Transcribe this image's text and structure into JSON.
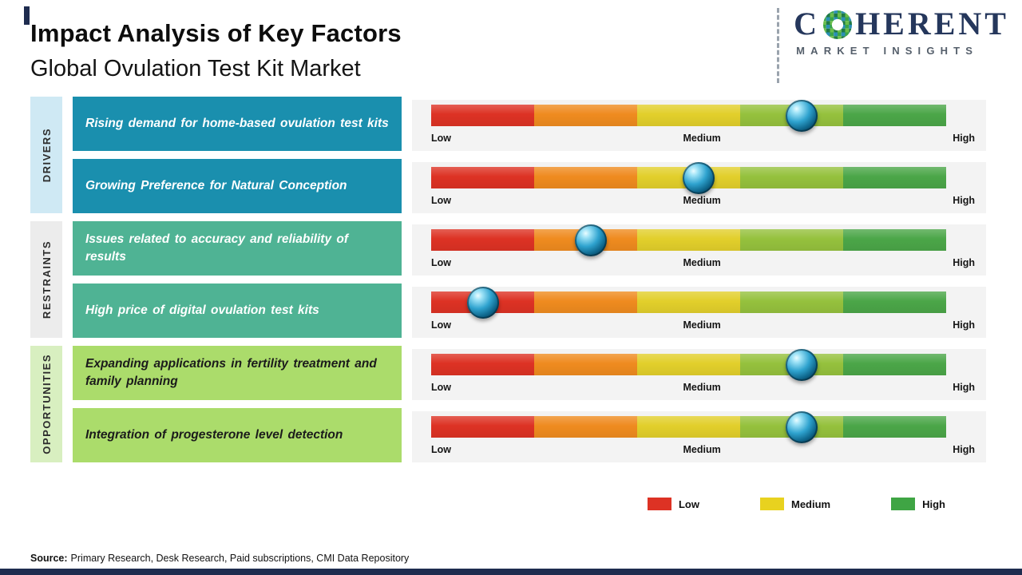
{
  "header": {
    "title": "Impact Analysis of Key Factors",
    "subtitle": "Global Ovulation Test Kit Market"
  },
  "logo": {
    "brand_c": "C",
    "brand_rest": "HERENT",
    "tagline": "MARKET INSIGHTS"
  },
  "categories": [
    {
      "label": "DRIVERS",
      "strip_color": "#cfe9f4",
      "box_color": "#1a8fae",
      "text_color": "#ffffff"
    },
    {
      "label": "RESTRAINTS",
      "strip_color": "#ececec",
      "box_color": "#4fb394",
      "text_color": "#ffffff"
    },
    {
      "label": "OPPORTUNITIES",
      "strip_color": "#d8efc0",
      "box_color": "#abdc6b",
      "text_color": "#1b1b1b"
    }
  ],
  "rows": [
    {
      "category_index": 0,
      "factor": "Rising demand for home-based ovulation test kits",
      "impact_percent": 72
    },
    {
      "category_index": 0,
      "factor": "Growing Preference for Natural Conception",
      "impact_percent": 52
    },
    {
      "category_index": 1,
      "factor": "Issues related to accuracy and reliability of results",
      "impact_percent": 31
    },
    {
      "category_index": 1,
      "factor": "High price of digital ovulation test kits",
      "impact_percent": 10
    },
    {
      "category_index": 2,
      "factor": "Expanding applications in fertility treatment and family planning",
      "impact_percent": 72
    },
    {
      "category_index": 2,
      "factor": "Integration of progesterone level detection",
      "impact_percent": 72
    }
  ],
  "scale": {
    "labels": [
      "Low",
      "Medium",
      "High"
    ],
    "segment_colors": [
      "#dd3224",
      "#ef8b1f",
      "#e2cf2b",
      "#95c13d",
      "#4ba648"
    ]
  },
  "legend": [
    {
      "label": "Low",
      "color": "#dd3224"
    },
    {
      "label": "Medium",
      "color": "#e8d21f"
    },
    {
      "label": "High",
      "color": "#3fa544"
    }
  ],
  "source": {
    "label": "Source:",
    "text": "Primary Research, Desk Research, Paid subscriptions, CMI Data Repository"
  },
  "chart_data": {
    "type": "bar",
    "title": "Impact Analysis of Key Factors",
    "subtitle": "Global Ovulation Test Kit Market",
    "orientation": "horizontal-impact-scale",
    "scale": {
      "labels": [
        "Low",
        "Medium",
        "High"
      ],
      "range_percent": [
        0,
        100
      ]
    },
    "groups": [
      "DRIVERS",
      "RESTRAINTS",
      "OPPORTUNITIES"
    ],
    "rows": [
      {
        "group": "DRIVERS",
        "factor": "Rising demand for home-based ovulation test kits",
        "impact_percent": 72,
        "impact_level": "Medium-High"
      },
      {
        "group": "DRIVERS",
        "factor": "Growing Preference for Natural Conception",
        "impact_percent": 52,
        "impact_level": "Medium"
      },
      {
        "group": "RESTRAINTS",
        "factor": "Issues related to accuracy and reliability of results",
        "impact_percent": 31,
        "impact_level": "Low-Medium"
      },
      {
        "group": "RESTRAINTS",
        "factor": "High price of digital ovulation test kits",
        "impact_percent": 10,
        "impact_level": "Low"
      },
      {
        "group": "OPPORTUNITIES",
        "factor": "Expanding applications in fertility treatment and family planning",
        "impact_percent": 72,
        "impact_level": "Medium-High"
      },
      {
        "group": "OPPORTUNITIES",
        "factor": "Integration of progesterone level detection",
        "impact_percent": 72,
        "impact_level": "Medium-High"
      }
    ],
    "legend": [
      "Low",
      "Medium",
      "High"
    ],
    "source": "Primary Research, Desk Research, Paid subscriptions, CMI Data Repository"
  }
}
